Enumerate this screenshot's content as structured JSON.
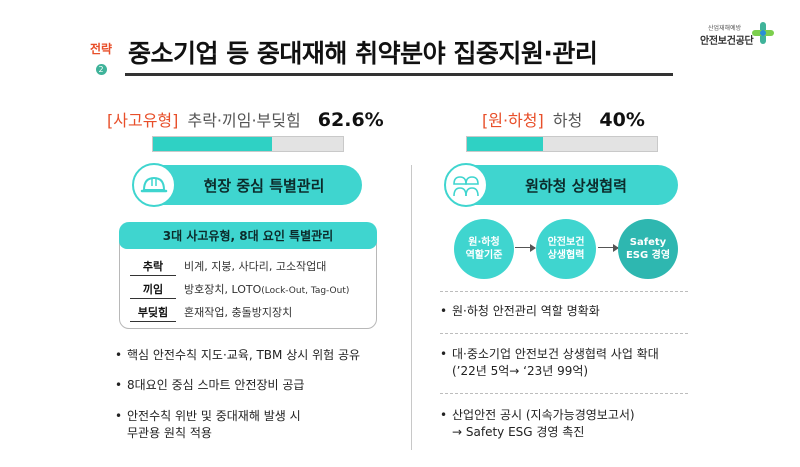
{
  "header": {
    "strategy_label": "전략",
    "strategy_number": "2",
    "title": "중소기업 등 중대재해 취약분야 집중지원·관리",
    "logo_sub": "산업재해예방",
    "logo_main": "안전보건공단"
  },
  "left": {
    "stat": {
      "open": "[",
      "type": "사고유형",
      "close": "]",
      "desc": "추락·끼임·부딪힘",
      "pct": "62.6%",
      "value_percent": 62.6
    },
    "pill_label": "현장 중심 특별관리",
    "box": {
      "title": "3대 사고유형, 8대 요인 특별관리",
      "rows": [
        {
          "key": "추락",
          "value": "비계, 지붕, 사다리, 고소작업대"
        },
        {
          "key": "끼임",
          "value": "방호장치, LOTO",
          "note": "(Lock-Out, Tag-Out)"
        },
        {
          "key": "부딪힘",
          "value": "혼재작업, 충돌방지장치"
        }
      ]
    },
    "bullets": [
      "핵심 안전수칙 지도·교육, TBM 상시 위험 공유",
      "8대요인 중심 스마트 안전장비 공급",
      "안전수칙 위반 및 중대재해 발생 시",
      "무관용 원칙 적용"
    ]
  },
  "right": {
    "stat": {
      "open": "[",
      "type": "원·하청",
      "close": "]",
      "desc": "하청",
      "pct": "40%",
      "value_percent": 40
    },
    "pill_label": "원하청 상생협력",
    "circles": [
      {
        "line1": "원·하청",
        "line2": "역할기준"
      },
      {
        "line1": "안전보건",
        "line2": "상생협력"
      },
      {
        "line1": "Safety",
        "line2": "ESG 경영"
      }
    ],
    "bullets": [
      "원·하청 안전관리 역할 명확화",
      "대·중소기업 안전보건 상생협력 사업 확대",
      "(’22년 5억→ ‘23년 99억)",
      "산업안전 공시 (지속가능경영보고서)",
      "→ Safety ESG 경영 촉진"
    ]
  },
  "bullet_symbol": "•",
  "colors": {
    "accent": "#3fd5cf",
    "highlight": "#e84f2a",
    "bar_fill": "#2fd1c4",
    "bar_bg": "#e3e3e3"
  },
  "icons": [
    "helmet-icon",
    "workers-icon",
    "logo-cross-icon"
  ]
}
